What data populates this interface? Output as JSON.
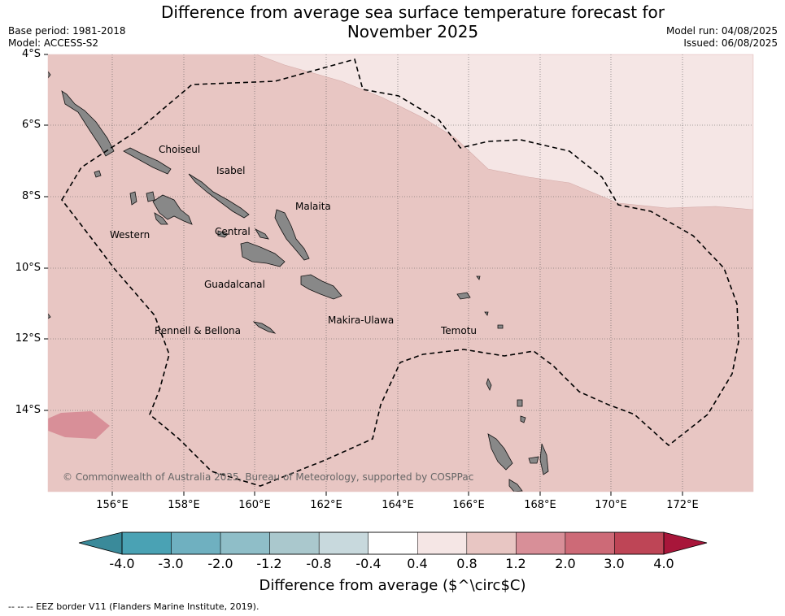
{
  "title_line1": "Difference from average sea surface temperature forecast for",
  "title_line2": "November 2025",
  "meta_left": [
    "Base period: 1981-2018",
    "Model: ACCESS-S2"
  ],
  "meta_right": [
    "Model run: 04/08/2025",
    "Issued: 06/08/2025"
  ],
  "lat_labels": [
    "4°S",
    "6°S",
    "8°S",
    "10°S",
    "12°S",
    "14°S"
  ],
  "lon_labels": [
    "156°E",
    "158°E",
    "160°E",
    "162°E",
    "164°E",
    "166°E",
    "168°E",
    "170°E",
    "172°E"
  ],
  "regions": [
    "Choiseul",
    "Isabel",
    "Malaita",
    "Western",
    "Central",
    "Guadalcanal",
    "Makira-Ulawa",
    "Rennell & Bellona",
    "Temotu"
  ],
  "copyright": "© Commonwealth of Australia 2025, Bureau of Meteorology, supported by COSPPac",
  "colorbar": {
    "ticks": [
      "-4.0",
      "-3.0",
      "-2.0",
      "-1.2",
      "-0.8",
      "-0.4",
      "0.4",
      "0.8",
      "1.2",
      "2.0",
      "3.0",
      "4.0"
    ],
    "colors": [
      "#4aa2b4",
      "#6fb0c0",
      "#8fbec8",
      "#aac8cd",
      "#c8d9dd",
      "#ffffff",
      "#f5e6e5",
      "#e8c6c3",
      "#d88f98",
      "#cd6a77",
      "#be4556"
    ],
    "under_color": "#3a8a9a",
    "over_color": "#a8163a",
    "title": "Difference from average ($^\\circ$C)"
  },
  "map_colors": {
    "background_anomaly": "#e8c6c3",
    "weak_anomaly": "#f5e6e5",
    "strong_anomaly": "#d88f98",
    "land": "#888888"
  },
  "footnote": "-- -- -- EEZ border V11 (Flanders Marine Institute, 2019)."
}
